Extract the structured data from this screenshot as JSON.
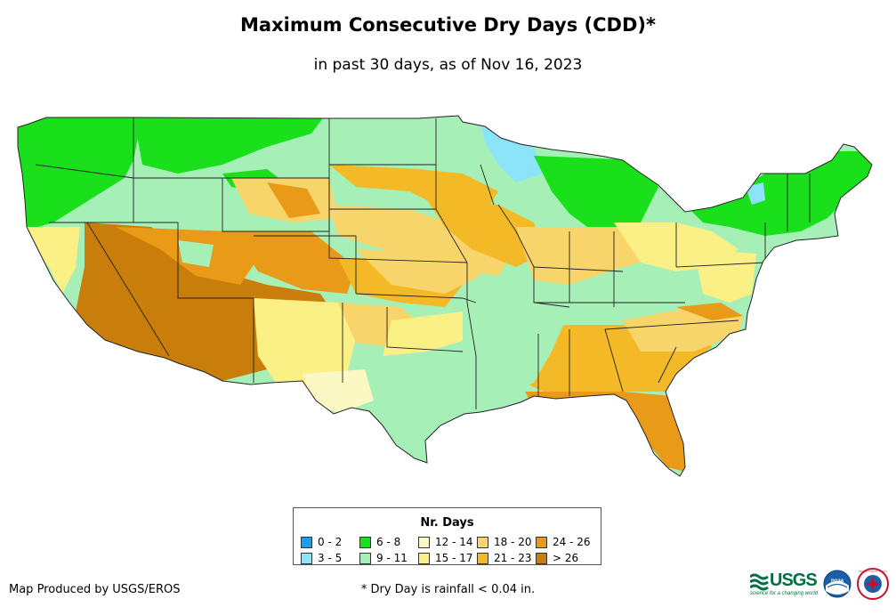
{
  "header": {
    "title": "Maximum Consecutive Dry Days (CDD)*",
    "subtitle": "in past 30 days, as of Nov 16, 2023"
  },
  "legend": {
    "title": "Nr. Days",
    "items": [
      {
        "label": "0 - 2",
        "color": "#1f9ee8"
      },
      {
        "label": "3 - 5",
        "color": "#8be4f7"
      },
      {
        "label": "6 - 8",
        "color": "#19e01a"
      },
      {
        "label": "9 - 11",
        "color": "#a6f0b8"
      },
      {
        "label": "12 - 14",
        "color": "#fbf8c4"
      },
      {
        "label": "15 - 17",
        "color": "#fbf085"
      },
      {
        "label": "18 - 20",
        "color": "#f7d56a"
      },
      {
        "label": "21 - 23",
        "color": "#f4b927"
      },
      {
        "label": "24 - 26",
        "color": "#e99a18"
      },
      {
        "label": "> 26",
        "color": "#c97d0a"
      }
    ]
  },
  "footer": {
    "credit": "Map Produced by USGS/EROS",
    "footnote": "* Dry Day is rainfall < 0.04 in."
  },
  "logos": {
    "usgs_text": "USGS",
    "usgs_tagline": "science for a changing world",
    "noaa_text": "noaa",
    "nws_text": "NATIONAL WEATHER SERVICE"
  },
  "colors": {
    "outline": "#222222",
    "usgs_green": "#006f41",
    "noaa_blue": "#1b5fa8"
  }
}
